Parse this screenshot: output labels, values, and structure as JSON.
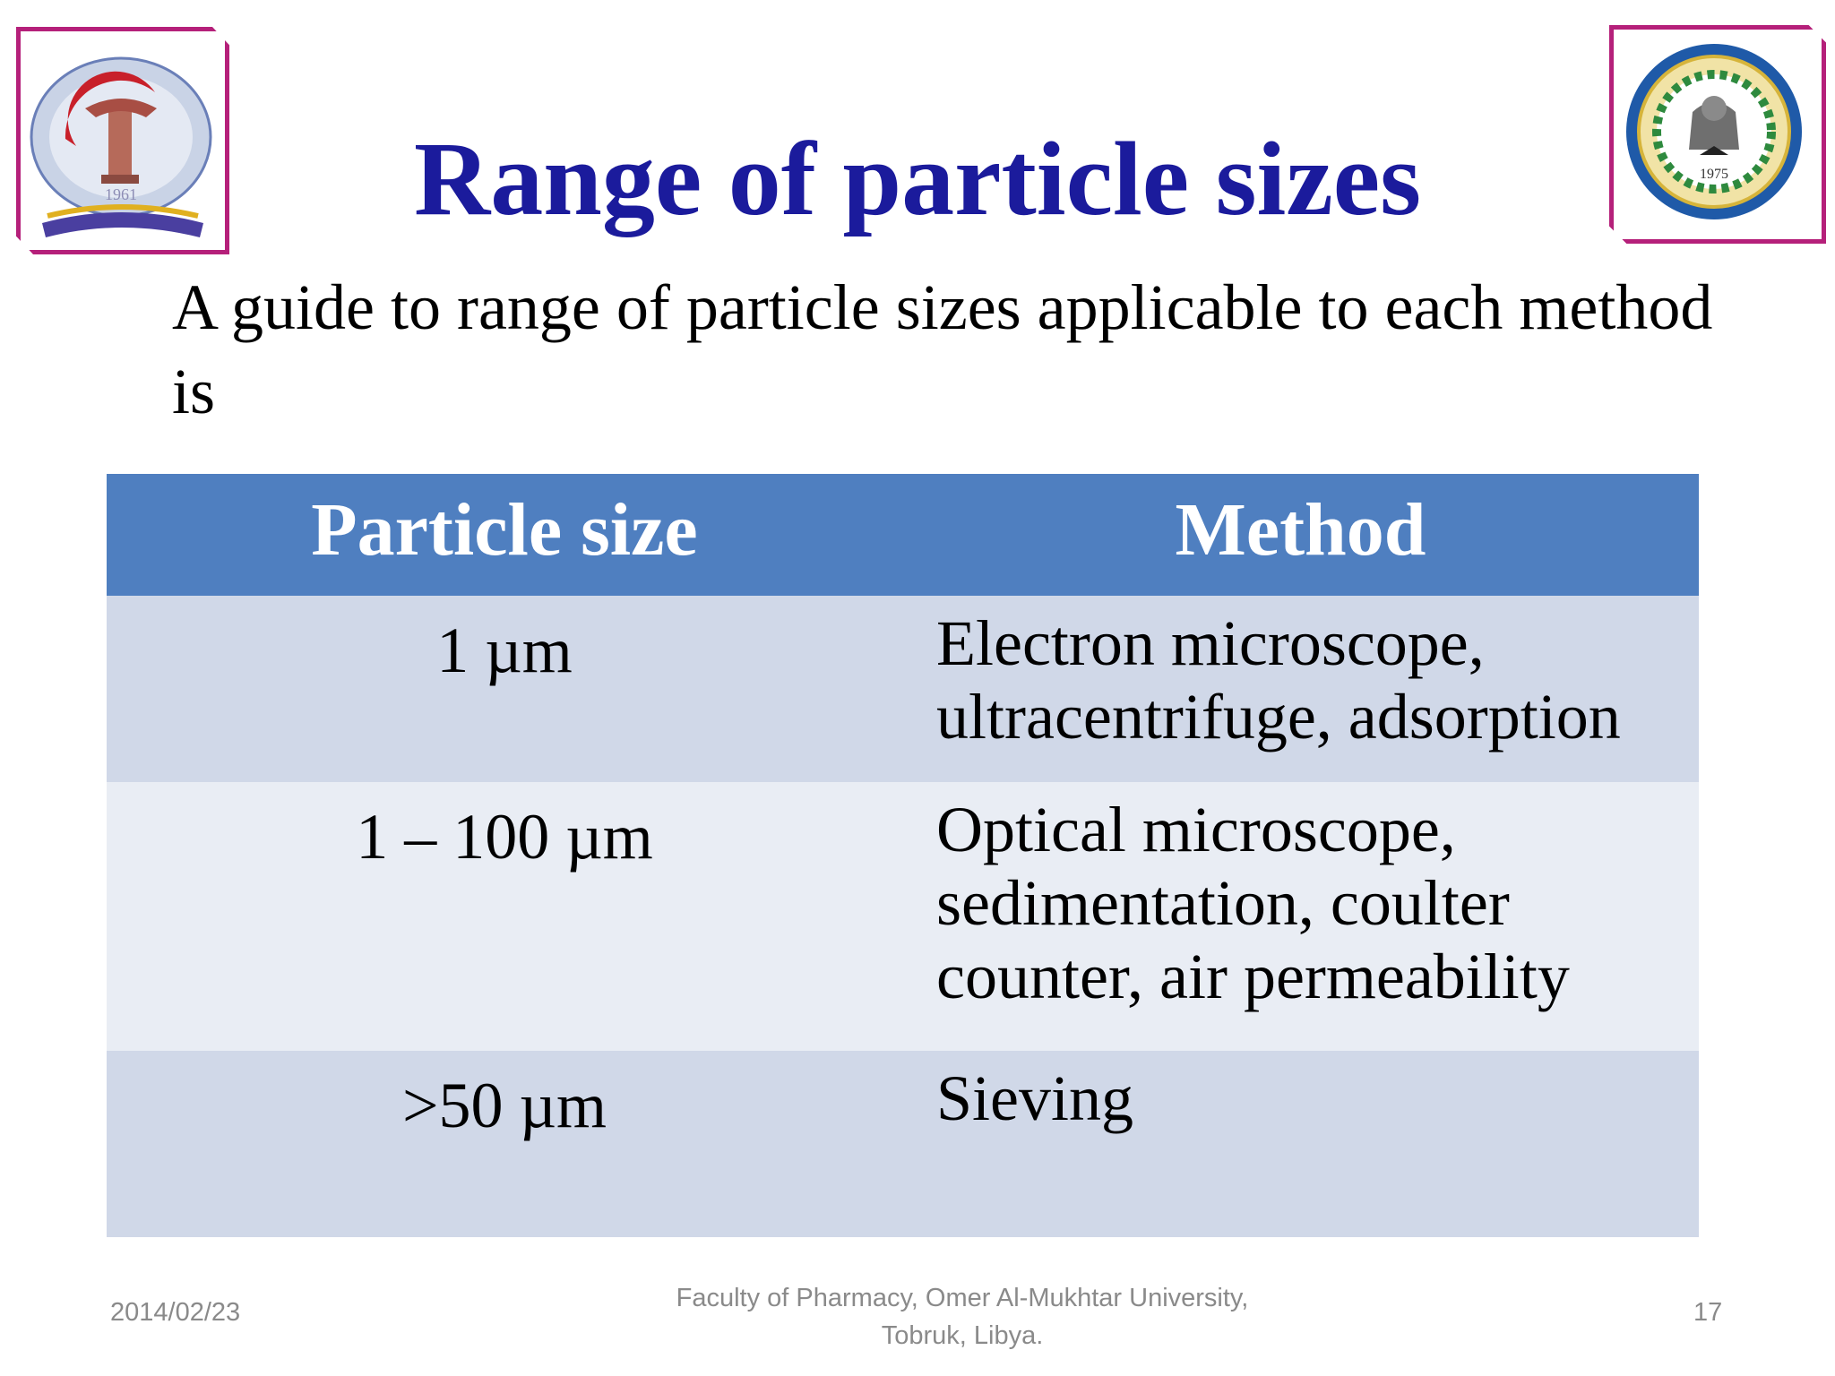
{
  "slide": {
    "title": "Range of particle sizes",
    "intro": "A guide to range of particle sizes applicable to each method is",
    "table": {
      "headers": [
        "Particle size",
        "Method"
      ],
      "rows": [
        {
          "size": "1 µm",
          "method": "Electron microscope, ultracentrifuge, adsorption"
        },
        {
          "size": "1 – 100 µm",
          "method": "Optical microscope, sedimentation, coulter counter, air permeability"
        },
        {
          "size": ">50 µm",
          "method": "Sieving"
        }
      ]
    },
    "logos": {
      "left": {
        "text": "1961"
      },
      "right": {
        "text": "1975"
      }
    },
    "footer": {
      "date": "2014/02/23",
      "center_line1": "Faculty of Pharmacy, Omer Al-Mukhtar University,",
      "center_line2": "Tobruk, Libya.",
      "page": "17"
    },
    "colors": {
      "title": "#1b1b9c",
      "header_bg": "#4f7fc0",
      "row_dark": "#d0d8e8",
      "row_light": "#e9edf4",
      "logo_border": "#b5207a"
    }
  }
}
